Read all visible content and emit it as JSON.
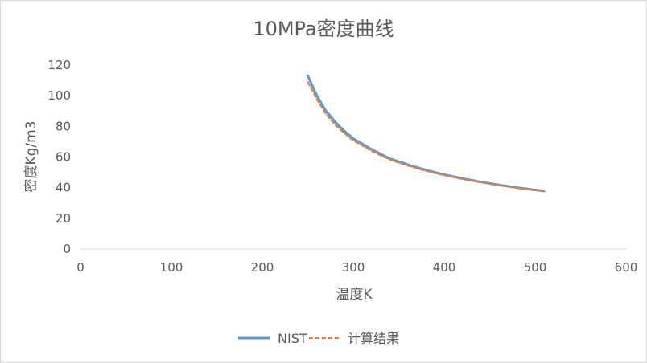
{
  "chart_data": {
    "type": "line",
    "title": "10MPa密度曲线",
    "xlabel": "温度K",
    "ylabel": "密度Kg/m3",
    "xlim": [
      0,
      600
    ],
    "ylim": [
      0,
      120
    ],
    "x_ticks": [
      "0",
      "100",
      "200",
      "300",
      "400",
      "500",
      "600"
    ],
    "y_ticks": [
      "0",
      "20",
      "40",
      "60",
      "80",
      "100",
      "120"
    ],
    "grid": false,
    "legend_position": "bottom",
    "series": [
      {
        "name": "NIST",
        "color": "#5b9bd5",
        "style": "solid",
        "x": [
          250,
          260,
          270,
          280,
          290,
          300,
          320,
          340,
          360,
          380,
          400,
          420,
          440,
          460,
          480,
          500,
          510
        ],
        "y": [
          113,
          100,
          90,
          83,
          77,
          72,
          65,
          59,
          55,
          51.5,
          48.5,
          46,
          43.8,
          41.8,
          40,
          38.5,
          37.8
        ]
      },
      {
        "name": "计算结果",
        "color": "#ed7d31",
        "style": "dashed",
        "x": [
          250,
          260,
          270,
          280,
          290,
          300,
          320,
          340,
          360,
          380,
          400,
          420,
          440,
          460,
          480,
          500,
          510
        ],
        "y": [
          109,
          97.5,
          88,
          81,
          75.5,
          70.8,
          64,
          58.3,
          54.3,
          50.9,
          48,
          45.5,
          43.4,
          41.5,
          39.8,
          38.3,
          37.7
        ]
      }
    ]
  }
}
